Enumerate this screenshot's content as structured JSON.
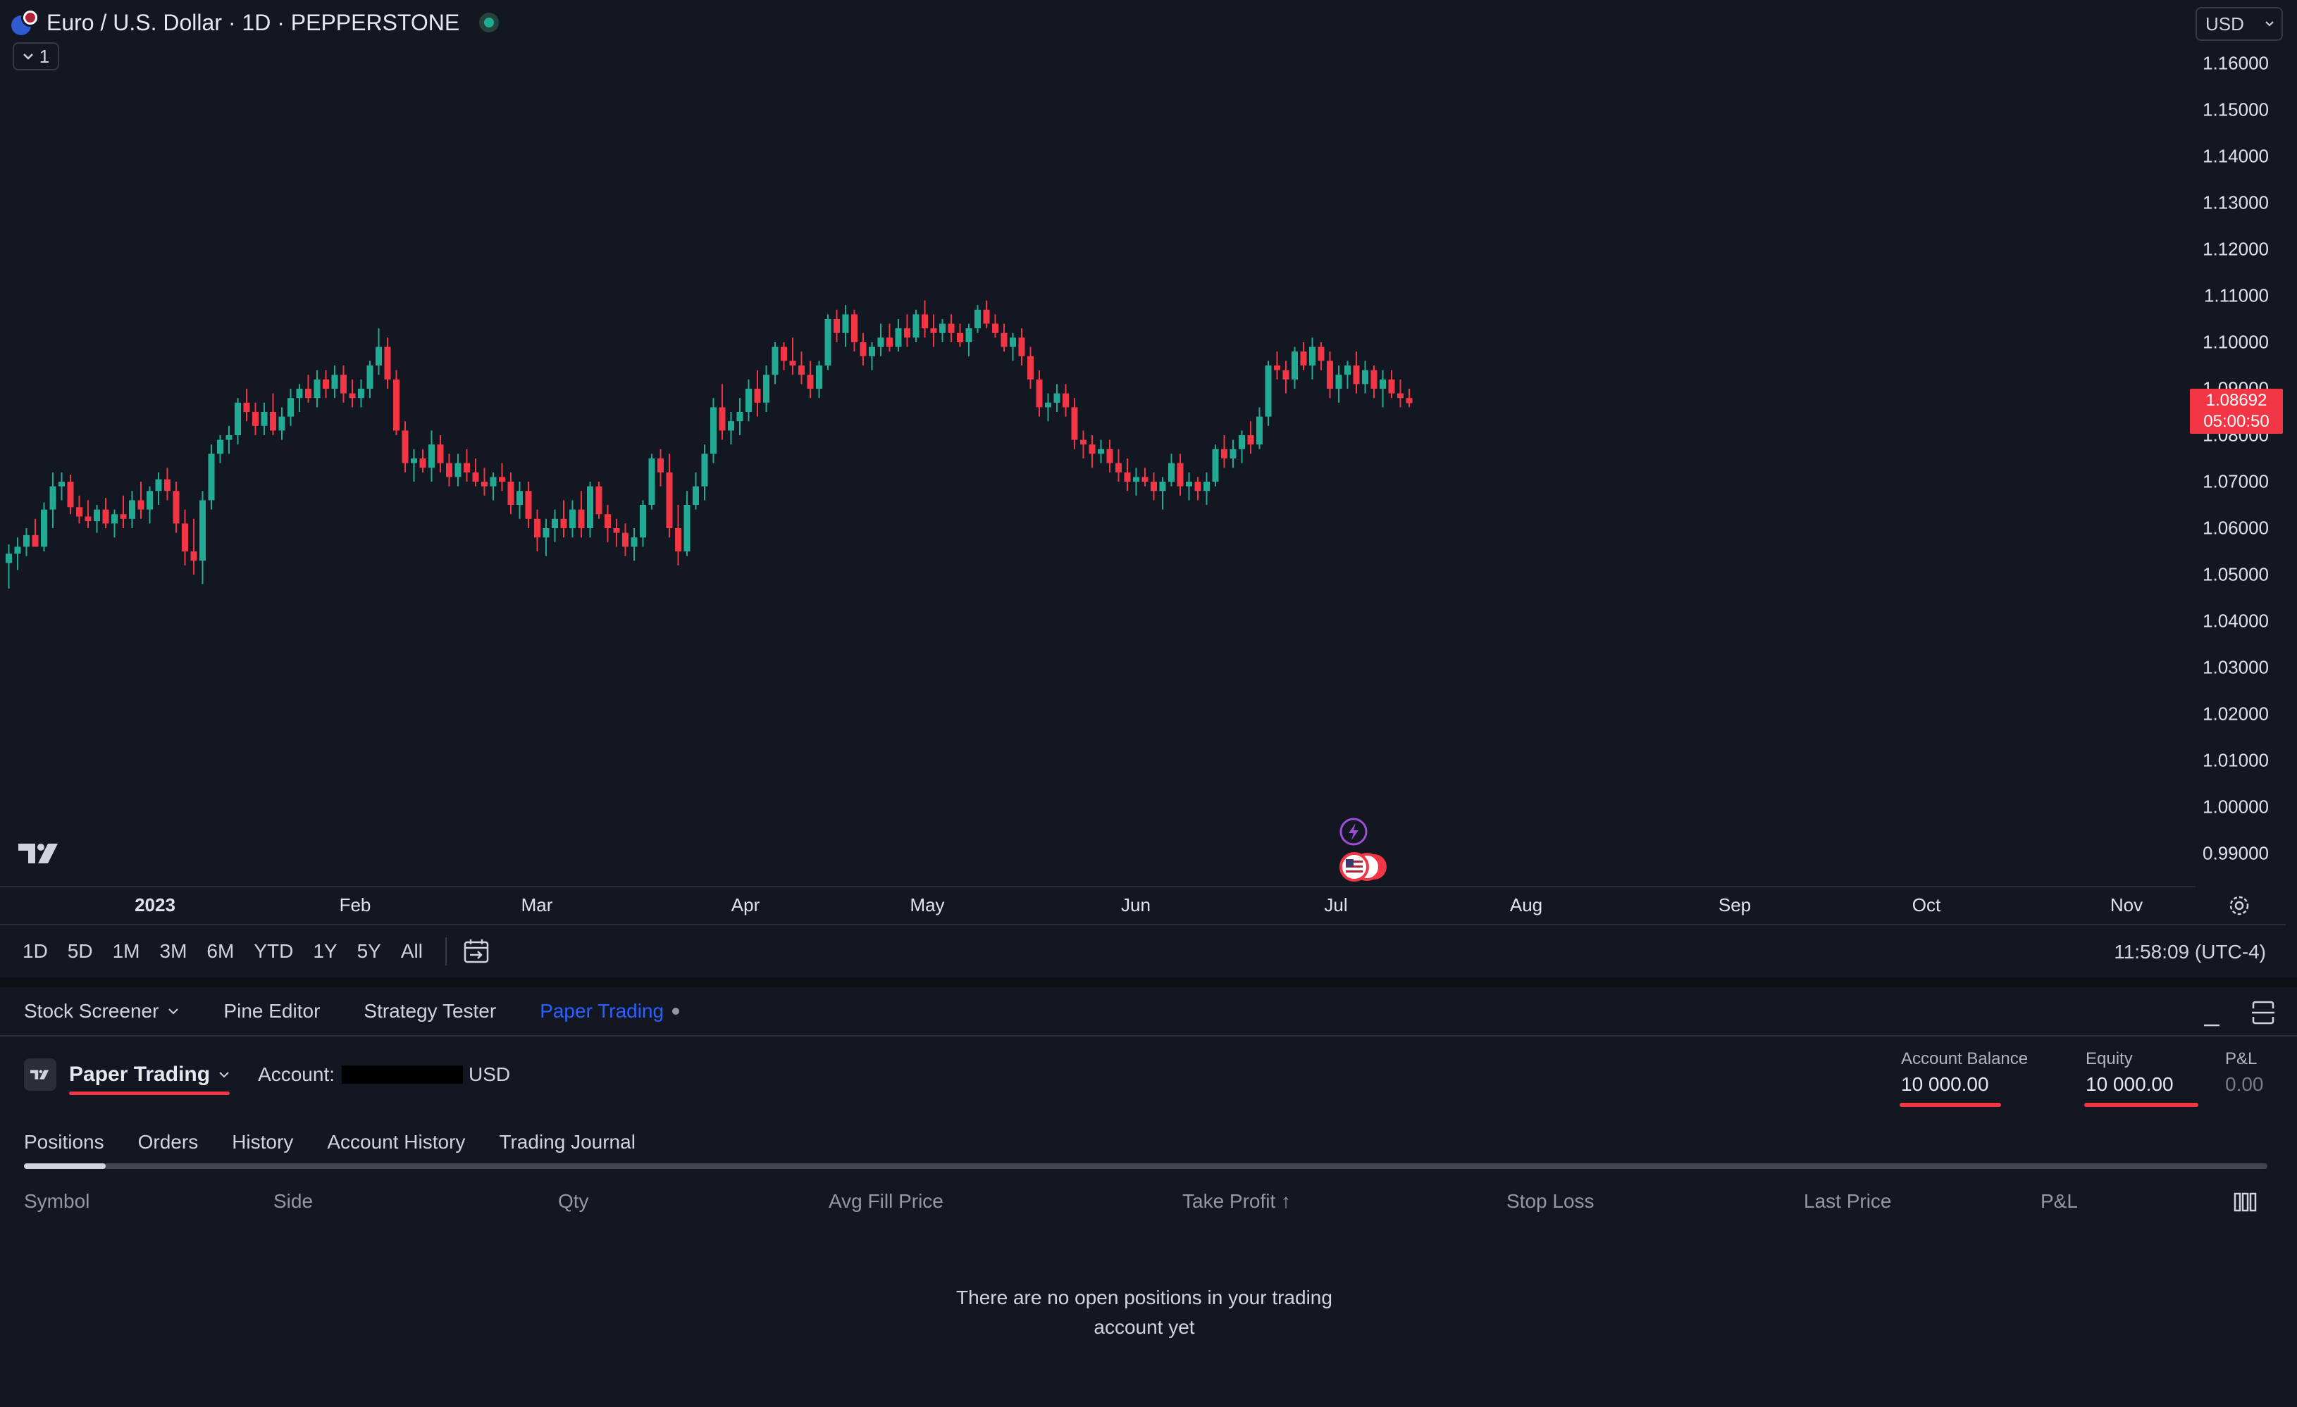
{
  "header": {
    "symbol_title": "Euro / U.S. Dollar · 1D · PEPPERSTONE",
    "collapse_count": "1",
    "currency": "USD"
  },
  "price_axis": {
    "ticks": [
      "1.16000",
      "1.15000",
      "1.14000",
      "1.13000",
      "1.12000",
      "1.11000",
      "1.10000",
      "1.09000",
      "1.08000",
      "1.07000",
      "1.06000",
      "1.05000",
      "1.04000",
      "1.03000",
      "1.02000",
      "1.01000",
      "1.00000",
      "0.99000"
    ],
    "current_price": "1.08692",
    "countdown": "05:00:50"
  },
  "time_axis": {
    "labels": [
      "2023",
      "Feb",
      "Mar",
      "Apr",
      "May",
      "Jun",
      "Jul",
      "Aug",
      "Sep",
      "Oct",
      "Nov"
    ]
  },
  "range_bar": {
    "ranges": [
      "1D",
      "5D",
      "1M",
      "3M",
      "6M",
      "YTD",
      "1Y",
      "5Y",
      "All"
    ],
    "clock": "11:58:09 (UTC-4)"
  },
  "bottom_tabs": {
    "items": [
      "Stock Screener",
      "Pine Editor",
      "Strategy Tester",
      "Paper Trading"
    ],
    "active": "Paper Trading"
  },
  "account": {
    "broker": "Paper Trading",
    "account_label": "Account:",
    "currency": "USD",
    "balance_label": "Account Balance",
    "balance_value": "10 000.00",
    "equity_label": "Equity",
    "equity_value": "10 000.00",
    "pl_label": "P&L",
    "pl_value": "0.00"
  },
  "subtabs": [
    "Positions",
    "Orders",
    "History",
    "Account History",
    "Trading Journal"
  ],
  "table": {
    "headers": [
      "Symbol",
      "Side",
      "Qty",
      "Avg Fill Price",
      "Take Profit ↑",
      "Stop Loss",
      "Last Price",
      "P&L"
    ],
    "empty_line1": "There are no open positions in your trading",
    "empty_line2": "account yet"
  },
  "colors": {
    "background": "#131722",
    "up": "#22ab94",
    "down": "#f23645",
    "accent": "#2962ff"
  },
  "icons": [
    "currency-pair-icon",
    "live-status-icon",
    "chevron-down-icon",
    "tradingview-logo-icon",
    "goto-date-icon",
    "gear-icon",
    "minimize-icon",
    "maximize-icon",
    "lightning-icon",
    "us-flag-icon",
    "columns-icon"
  ],
  "chart_data": {
    "type": "candlestick",
    "symbol": "EURUSD",
    "ylim": [
      0.985,
      1.165
    ],
    "candles": [
      [
        1.0525,
        1.0565,
        1.047,
        1.0545
      ],
      [
        1.0545,
        1.058,
        1.051,
        1.056
      ],
      [
        1.056,
        1.06,
        1.054,
        1.0585
      ],
      [
        1.0585,
        1.062,
        1.056,
        1.056
      ],
      [
        1.056,
        1.0655,
        1.055,
        1.064
      ],
      [
        1.064,
        1.072,
        1.06,
        1.069
      ],
      [
        1.069,
        1.072,
        1.066,
        1.07
      ],
      [
        1.07,
        1.0715,
        1.063,
        1.0645
      ],
      [
        1.0645,
        1.067,
        1.061,
        1.0625
      ],
      [
        1.0625,
        1.066,
        1.06,
        1.0615
      ],
      [
        1.0615,
        1.065,
        1.059,
        1.064
      ],
      [
        1.064,
        1.0665,
        1.06,
        1.061
      ],
      [
        1.061,
        1.064,
        1.058,
        1.063
      ],
      [
        1.063,
        1.067,
        1.06,
        1.062
      ],
      [
        1.062,
        1.068,
        1.06,
        1.066
      ],
      [
        1.066,
        1.07,
        1.062,
        1.064
      ],
      [
        1.064,
        1.069,
        1.061,
        1.068
      ],
      [
        1.068,
        1.072,
        1.065,
        1.0705
      ],
      [
        1.0705,
        1.073,
        1.066,
        1.068
      ],
      [
        1.068,
        1.07,
        1.059,
        1.061
      ],
      [
        1.061,
        1.064,
        1.052,
        1.055
      ],
      [
        1.055,
        1.062,
        1.05,
        1.053
      ],
      [
        1.053,
        1.068,
        1.048,
        1.066
      ],
      [
        1.066,
        1.078,
        1.064,
        1.076
      ],
      [
        1.076,
        1.08,
        1.074,
        1.079
      ],
      [
        1.079,
        1.082,
        1.076,
        1.08
      ],
      [
        1.08,
        1.088,
        1.078,
        1.087
      ],
      [
        1.087,
        1.09,
        1.083,
        1.085
      ],
      [
        1.085,
        1.087,
        1.08,
        1.082
      ],
      [
        1.082,
        1.087,
        1.08,
        1.085
      ],
      [
        1.085,
        1.089,
        1.08,
        1.081
      ],
      [
        1.081,
        1.086,
        1.079,
        1.084
      ],
      [
        1.084,
        1.09,
        1.082,
        1.088
      ],
      [
        1.088,
        1.091,
        1.085,
        1.09
      ],
      [
        1.09,
        1.093,
        1.087,
        1.088
      ],
      [
        1.088,
        1.094,
        1.086,
        1.092
      ],
      [
        1.092,
        1.094,
        1.088,
        1.09
      ],
      [
        1.09,
        1.095,
        1.088,
        1.093
      ],
      [
        1.093,
        1.095,
        1.087,
        1.089
      ],
      [
        1.089,
        1.092,
        1.086,
        1.088
      ],
      [
        1.088,
        1.092,
        1.086,
        1.09
      ],
      [
        1.09,
        1.096,
        1.088,
        1.095
      ],
      [
        1.095,
        1.103,
        1.093,
        1.099
      ],
      [
        1.099,
        1.101,
        1.09,
        1.092
      ],
      [
        1.092,
        1.094,
        1.08,
        1.081
      ],
      [
        1.081,
        1.083,
        1.072,
        1.074
      ],
      [
        1.074,
        1.077,
        1.07,
        1.075
      ],
      [
        1.075,
        1.077,
        1.072,
        1.073
      ],
      [
        1.073,
        1.081,
        1.07,
        1.078
      ],
      [
        1.078,
        1.08,
        1.072,
        1.074
      ],
      [
        1.074,
        1.076,
        1.069,
        1.071
      ],
      [
        1.071,
        1.076,
        1.069,
        1.074
      ],
      [
        1.074,
        1.077,
        1.07,
        1.072
      ],
      [
        1.072,
        1.075,
        1.069,
        1.07
      ],
      [
        1.07,
        1.073,
        1.067,
        1.069
      ],
      [
        1.069,
        1.072,
        1.066,
        1.071
      ],
      [
        1.071,
        1.074,
        1.068,
        1.07
      ],
      [
        1.07,
        1.072,
        1.063,
        1.065
      ],
      [
        1.065,
        1.07,
        1.062,
        1.068
      ],
      [
        1.068,
        1.07,
        1.06,
        1.062
      ],
      [
        1.062,
        1.064,
        1.055,
        1.058
      ],
      [
        1.058,
        1.062,
        1.054,
        1.06
      ],
      [
        1.06,
        1.064,
        1.057,
        1.062
      ],
      [
        1.062,
        1.066,
        1.058,
        1.06
      ],
      [
        1.06,
        1.066,
        1.058,
        1.064
      ],
      [
        1.064,
        1.068,
        1.058,
        1.06
      ],
      [
        1.06,
        1.07,
        1.058,
        1.069
      ],
      [
        1.069,
        1.07,
        1.062,
        1.063
      ],
      [
        1.063,
        1.065,
        1.057,
        1.06
      ],
      [
        1.06,
        1.062,
        1.056,
        1.059
      ],
      [
        1.059,
        1.061,
        1.054,
        1.056
      ],
      [
        1.056,
        1.06,
        1.053,
        1.058
      ],
      [
        1.058,
        1.066,
        1.056,
        1.065
      ],
      [
        1.065,
        1.076,
        1.064,
        1.075
      ],
      [
        1.075,
        1.077,
        1.069,
        1.072
      ],
      [
        1.072,
        1.076,
        1.058,
        1.06
      ],
      [
        1.06,
        1.065,
        1.052,
        1.055
      ],
      [
        1.055,
        1.068,
        1.054,
        1.065
      ],
      [
        1.065,
        1.072,
        1.064,
        1.069
      ],
      [
        1.069,
        1.078,
        1.066,
        1.076
      ],
      [
        1.076,
        1.088,
        1.074,
        1.086
      ],
      [
        1.086,
        1.091,
        1.079,
        1.081
      ],
      [
        1.081,
        1.085,
        1.078,
        1.083
      ],
      [
        1.083,
        1.088,
        1.08,
        1.085
      ],
      [
        1.085,
        1.092,
        1.083,
        1.09
      ],
      [
        1.09,
        1.094,
        1.084,
        1.087
      ],
      [
        1.087,
        1.095,
        1.085,
        1.093
      ],
      [
        1.093,
        1.1,
        1.091,
        1.099
      ],
      [
        1.099,
        1.1,
        1.094,
        1.096
      ],
      [
        1.096,
        1.101,
        1.093,
        1.095
      ],
      [
        1.095,
        1.098,
        1.091,
        1.093
      ],
      [
        1.093,
        1.096,
        1.088,
        1.09
      ],
      [
        1.09,
        1.096,
        1.088,
        1.095
      ],
      [
        1.095,
        1.106,
        1.094,
        1.105
      ],
      [
        1.105,
        1.107,
        1.1,
        1.102
      ],
      [
        1.102,
        1.108,
        1.099,
        1.106
      ],
      [
        1.106,
        1.107,
        1.098,
        1.1
      ],
      [
        1.1,
        1.102,
        1.095,
        1.097
      ],
      [
        1.097,
        1.1,
        1.094,
        1.099
      ],
      [
        1.099,
        1.104,
        1.097,
        1.101
      ],
      [
        1.101,
        1.104,
        1.098,
        1.099
      ],
      [
        1.099,
        1.105,
        1.098,
        1.103
      ],
      [
        1.103,
        1.106,
        1.099,
        1.101
      ],
      [
        1.101,
        1.107,
        1.1,
        1.106
      ],
      [
        1.106,
        1.109,
        1.101,
        1.103
      ],
      [
        1.103,
        1.106,
        1.099,
        1.102
      ],
      [
        1.102,
        1.105,
        1.1,
        1.104
      ],
      [
        1.104,
        1.106,
        1.1,
        1.102
      ],
      [
        1.102,
        1.104,
        1.099,
        1.1
      ],
      [
        1.1,
        1.104,
        1.097,
        1.103
      ],
      [
        1.103,
        1.108,
        1.102,
        1.107
      ],
      [
        1.107,
        1.109,
        1.103,
        1.104
      ],
      [
        1.104,
        1.106,
        1.101,
        1.102
      ],
      [
        1.102,
        1.104,
        1.098,
        1.099
      ],
      [
        1.099,
        1.102,
        1.096,
        1.101
      ],
      [
        1.101,
        1.103,
        1.095,
        1.097
      ],
      [
        1.097,
        1.099,
        1.09,
        1.092
      ],
      [
        1.092,
        1.094,
        1.084,
        1.086
      ],
      [
        1.086,
        1.089,
        1.083,
        1.087
      ],
      [
        1.087,
        1.091,
        1.085,
        1.089
      ],
      [
        1.089,
        1.091,
        1.084,
        1.086
      ],
      [
        1.086,
        1.088,
        1.077,
        1.079
      ],
      [
        1.079,
        1.081,
        1.075,
        1.078
      ],
      [
        1.078,
        1.08,
        1.073,
        1.076
      ],
      [
        1.076,
        1.079,
        1.074,
        1.077
      ],
      [
        1.077,
        1.079,
        1.072,
        1.074
      ],
      [
        1.074,
        1.077,
        1.07,
        1.072
      ],
      [
        1.072,
        1.075,
        1.068,
        1.07
      ],
      [
        1.07,
        1.073,
        1.067,
        1.071
      ],
      [
        1.071,
        1.073,
        1.069,
        1.07
      ],
      [
        1.07,
        1.072,
        1.066,
        1.068
      ],
      [
        1.068,
        1.071,
        1.064,
        1.07
      ],
      [
        1.07,
        1.076,
        1.069,
        1.074
      ],
      [
        1.074,
        1.076,
        1.067,
        1.069
      ],
      [
        1.069,
        1.072,
        1.066,
        1.07
      ],
      [
        1.07,
        1.071,
        1.066,
        1.068
      ],
      [
        1.068,
        1.072,
        1.065,
        1.07
      ],
      [
        1.07,
        1.078,
        1.069,
        1.077
      ],
      [
        1.077,
        1.08,
        1.073,
        1.075
      ],
      [
        1.075,
        1.079,
        1.073,
        1.077
      ],
      [
        1.077,
        1.081,
        1.074,
        1.08
      ],
      [
        1.08,
        1.083,
        1.076,
        1.078
      ],
      [
        1.078,
        1.086,
        1.077,
        1.084
      ],
      [
        1.084,
        1.096,
        1.082,
        1.095
      ],
      [
        1.095,
        1.098,
        1.092,
        1.094
      ],
      [
        1.094,
        1.096,
        1.089,
        1.092
      ],
      [
        1.092,
        1.099,
        1.09,
        1.098
      ],
      [
        1.098,
        1.1,
        1.094,
        1.095
      ],
      [
        1.095,
        1.101,
        1.092,
        1.099
      ],
      [
        1.099,
        1.1,
        1.094,
        1.096
      ],
      [
        1.096,
        1.098,
        1.088,
        1.09
      ],
      [
        1.09,
        1.095,
        1.087,
        1.093
      ],
      [
        1.093,
        1.096,
        1.09,
        1.095
      ],
      [
        1.095,
        1.098,
        1.089,
        1.091
      ],
      [
        1.091,
        1.096,
        1.089,
        1.094
      ],
      [
        1.094,
        1.095,
        1.088,
        1.09
      ],
      [
        1.09,
        1.094,
        1.086,
        1.092
      ],
      [
        1.092,
        1.094,
        1.088,
        1.089
      ],
      [
        1.089,
        1.092,
        1.086,
        1.088
      ],
      [
        1.088,
        1.09,
        1.086,
        1.0869
      ]
    ]
  }
}
